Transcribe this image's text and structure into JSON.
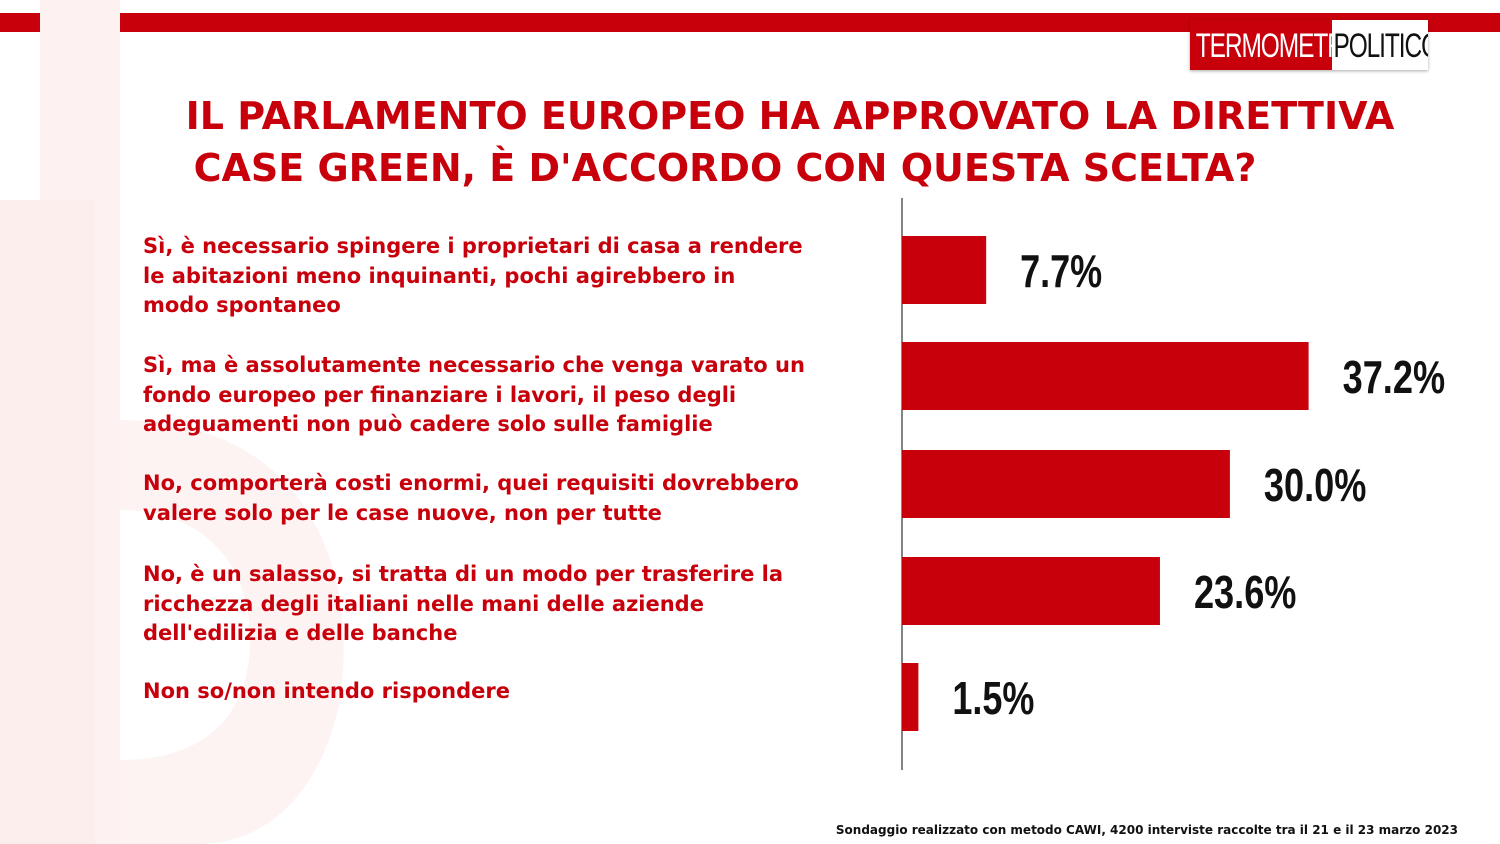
{
  "brand": {
    "logo_part1": "TERMOMETRO",
    "logo_part2": "POLITICO",
    "accent_color": "#c8000b"
  },
  "title": {
    "line1": "IL PARLAMENTO EUROPEO HA APPROVATO LA DIRETTIVA",
    "line2": "CASE GREEN, È D'ACCORDO CON QUESTA SCELTA?"
  },
  "chart_data": {
    "type": "bar",
    "orientation": "horizontal",
    "title": "IL PARLAMENTO EUROPEO HA APPROVATO LA DIRETTIVA CASE GREEN, È D'ACCORDO CON QUESTA SCELTA?",
    "categories": [
      "Sì, è necessario spingere i proprietari di casa a rendere\nle abitazioni meno inquinanti, pochi agirebbero in\nmodo spontaneo",
      "Sì, ma è assolutamente necessario che venga varato un\nfondo europeo per finanziare i lavori, il peso degli\nadeguamenti non può cadere solo sulle famiglie",
      "No, comporterà  costi enormi, quei requisiti dovrebbero\nvalere solo per le case nuove, non per tutte",
      "No, è un salasso, si tratta di un modo per trasferire la\nricchezza degli italiani nelle mani delle aziende\ndell'edilizia e delle banche",
      "Non so/non intendo rispondere"
    ],
    "values": [
      7.7,
      37.2,
      30.0,
      23.6,
      1.5
    ],
    "value_labels": [
      "7.7%",
      "37.2%",
      "30.0%",
      "23.6%",
      "1.5%"
    ],
    "unit": "%",
    "bar_color": "#c8000b",
    "grid": false,
    "legend": "none"
  },
  "footnote": "Sondaggio realizzato con metodo CAWI, 4200 interviste raccolte tra il 21 e il 23 marzo 2023"
}
